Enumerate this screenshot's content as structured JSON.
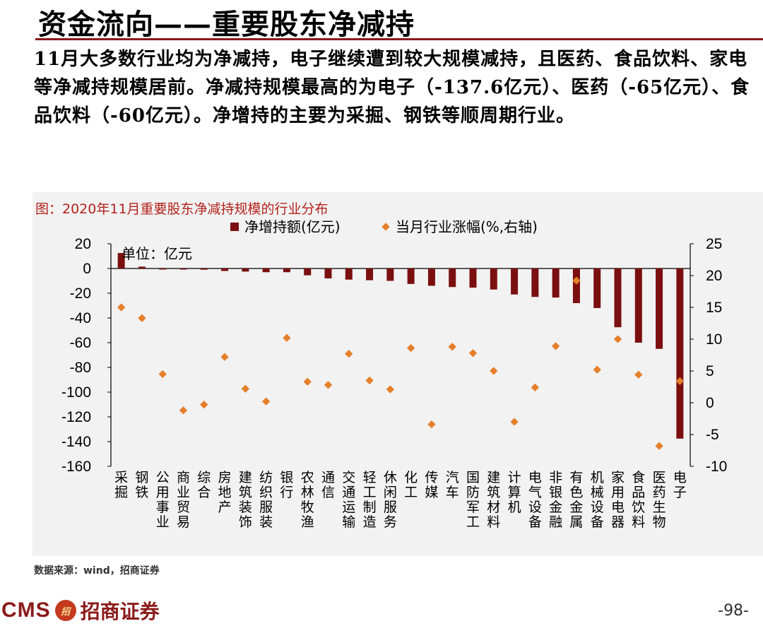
{
  "header": {
    "title": "资金流向——重要股东净减持",
    "summary": "11月大多数行业均为净减持，电子继续遭到较大规模减持，且医药、食品饮料、家电等净减持规模居前。净减持规模最高的为电子（-137.6亿元）、医药（-65亿元）、食品饮料（-60亿元）。净增持的主要为采掘、钢铁等顺周期行业。"
  },
  "colors": {
    "bar": "#7b0f0f",
    "dot": "#e57f2a",
    "accent": "#b3221c",
    "brand": "#8b1a1a",
    "panel": "#f2f2f2"
  },
  "chart_data": {
    "type": "bar",
    "title": "图：2020年11月重要股东净减持规模的行业分布",
    "unit_note": "单位：亿元",
    "legend_position": "top-center",
    "categories": [
      "采掘",
      "钢铁",
      "公用事业",
      "商业贸易",
      "综合",
      "房地产",
      "建筑装饰",
      "纺织服装",
      "银行",
      "农林牧渔",
      "通信",
      "交通运输",
      "轻工制造",
      "休闲服务",
      "化工",
      "传媒",
      "汽车",
      "国防军工",
      "建筑材料",
      "计算机",
      "电气设备",
      "非银金融",
      "有色金属",
      "机械设备",
      "家用电器",
      "食品饮料",
      "医药生物",
      "电子"
    ],
    "series": [
      {
        "name": "净增持额(亿元)",
        "type": "bar",
        "axis": "left",
        "values": [
          12.5,
          1.5,
          -0.5,
          -0.5,
          -1.0,
          -2.0,
          -2.5,
          -3.0,
          -3.0,
          -5.5,
          -8.0,
          -9.0,
          -9.5,
          -10.0,
          -12.5,
          -14.0,
          -15.0,
          -15.5,
          -17.0,
          -21.0,
          -23.0,
          -23.5,
          -28.0,
          -32.0,
          -47.5,
          -60.0,
          -65.0,
          -137.6
        ]
      },
      {
        "name": "当月行业涨幅(%,右轴)",
        "type": "scatter",
        "axis": "right",
        "values": [
          15.0,
          13.3,
          4.5,
          -1.2,
          -0.3,
          7.2,
          2.2,
          0.2,
          10.2,
          3.3,
          2.8,
          7.7,
          3.5,
          2.1,
          8.6,
          -3.4,
          8.8,
          7.8,
          5.0,
          -3.0,
          2.4,
          8.9,
          19.2,
          5.2,
          10.0,
          4.4,
          -6.8,
          3.4
        ]
      }
    ],
    "ylim_left": [
      -160,
      20
    ],
    "yticks_left": [
      20,
      0,
      -20,
      -40,
      -60,
      -80,
      -100,
      -120,
      -140,
      -160
    ],
    "ylim_right": [
      -10,
      25
    ],
    "yticks_right": [
      25,
      20,
      15,
      10,
      5,
      0,
      -5,
      -10
    ],
    "grid": false
  },
  "footer": {
    "source": "数据来源：wind，招商证券",
    "logo_text": "CMS",
    "logo_emblem": "招",
    "logo_name": "招商证券",
    "page_number": "-98-"
  }
}
